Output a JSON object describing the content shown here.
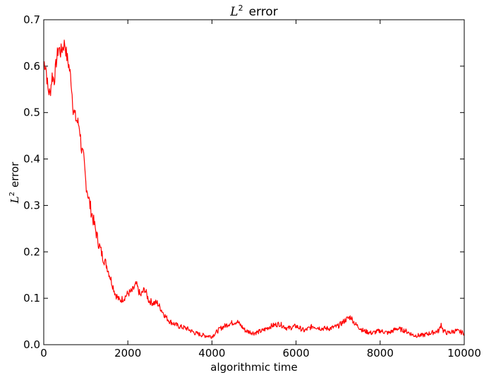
{
  "chart_data": {
    "type": "line",
    "title": {
      "math": "L",
      "sup": "2",
      "text": "error"
    },
    "xlabel": "algorithmic time",
    "ylabel": {
      "math": "L",
      "sup": "2",
      "text": "error"
    },
    "xlim": [
      0,
      10000
    ],
    "ylim": [
      0,
      0.7
    ],
    "xticks": [
      "0",
      "2000",
      "4000",
      "6000",
      "8000",
      "10000"
    ],
    "yticks": [
      "0.0",
      "0.1",
      "0.2",
      "0.3",
      "0.4",
      "0.5",
      "0.6",
      "0.7"
    ],
    "grid": false,
    "series": [
      {
        "color": "#ff0000",
        "x": [
          0,
          50,
          100,
          150,
          200,
          250,
          300,
          350,
          400,
          450,
          500,
          550,
          600,
          650,
          700,
          750,
          800,
          850,
          900,
          950,
          1000,
          1100,
          1200,
          1300,
          1400,
          1500,
          1600,
          1700,
          1800,
          1900,
          2000,
          2100,
          2200,
          2300,
          2400,
          2500,
          2600,
          2700,
          2800,
          2900,
          3000,
          3200,
          3400,
          3600,
          3800,
          4000,
          4200,
          4400,
          4600,
          4800,
          5000,
          5200,
          5400,
          5600,
          5800,
          6000,
          6200,
          6400,
          6600,
          6800,
          7000,
          7200,
          7300,
          7400,
          7600,
          7800,
          8000,
          8200,
          8400,
          8600,
          8800,
          9000,
          9200,
          9400,
          9450,
          9500,
          9600,
          9800,
          10000
        ],
        "y": [
          0.61,
          0.6,
          0.55,
          0.54,
          0.58,
          0.57,
          0.61,
          0.64,
          0.63,
          0.64,
          0.65,
          0.62,
          0.6,
          0.57,
          0.51,
          0.49,
          0.48,
          0.47,
          0.42,
          0.4,
          0.35,
          0.3,
          0.26,
          0.22,
          0.19,
          0.17,
          0.14,
          0.11,
          0.095,
          0.1,
          0.11,
          0.115,
          0.13,
          0.105,
          0.12,
          0.095,
          0.09,
          0.09,
          0.075,
          0.06,
          0.05,
          0.04,
          0.035,
          0.025,
          0.02,
          0.018,
          0.035,
          0.045,
          0.05,
          0.03,
          0.025,
          0.03,
          0.04,
          0.045,
          0.035,
          0.04,
          0.03,
          0.04,
          0.035,
          0.035,
          0.04,
          0.055,
          0.06,
          0.045,
          0.03,
          0.025,
          0.03,
          0.025,
          0.035,
          0.03,
          0.02,
          0.02,
          0.025,
          0.03,
          0.045,
          0.03,
          0.025,
          0.03,
          0.025
        ]
      }
    ]
  }
}
